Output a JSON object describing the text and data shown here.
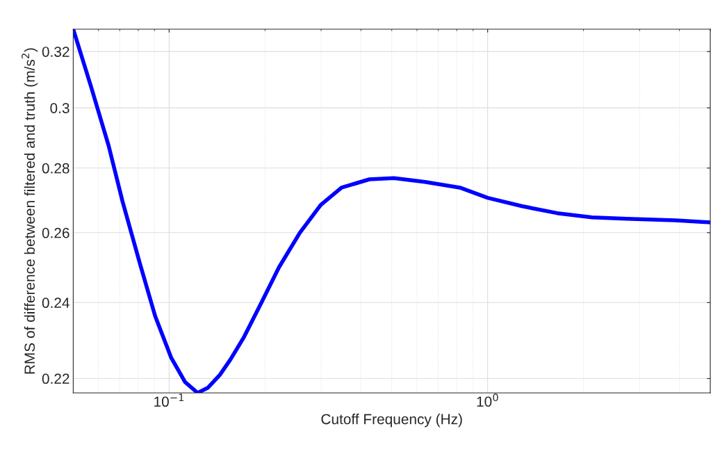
{
  "chart_data": {
    "type": "line",
    "xlabel": "Cutoff Frequency (Hz)",
    "ylabel": "RMS of difference between filtered and truth (m/s$^{2}$)",
    "log": "xy",
    "grid": true,
    "marker": "none",
    "line_style": "solid",
    "legend": false,
    "xlim": [
      0.05,
      5
    ],
    "ylim": [
      0.2164,
      0.3283
    ],
    "xticks": [
      {
        "value": 0.1,
        "label": "10$^{−1}$"
      },
      {
        "value": 1,
        "label": "10$^{0}$"
      }
    ],
    "yticks": [
      0.22,
      0.24,
      0.26,
      0.28,
      0.3,
      0.32
    ],
    "series": [
      {
        "color": "#0000ff",
        "x": [
          0.05,
          0.0569,
          0.0646,
          0.0714,
          0.081,
          0.0904,
          0.1015,
          0.1122,
          0.1229,
          0.1325,
          0.1443,
          0.1557,
          0.1721,
          0.1952,
          0.2213,
          0.2573,
          0.2992,
          0.3479,
          0.4254,
          0.5071,
          0.636,
          0.818,
          1.0,
          1.286,
          1.653,
          2.126,
          2.733,
          3.886,
          5.0
        ],
        "values": [
          0.3283,
          0.3073,
          0.2872,
          0.2695,
          0.2509,
          0.2363,
          0.2253,
          0.2191,
          0.2164,
          0.2177,
          0.2209,
          0.2248,
          0.2308,
          0.2401,
          0.2499,
          0.26,
          0.2684,
          0.2738,
          0.2764,
          0.2768,
          0.2756,
          0.2738,
          0.2706,
          0.268,
          0.2659,
          0.2646,
          0.2642,
          0.2637,
          0.2631
        ]
      }
    ]
  }
}
